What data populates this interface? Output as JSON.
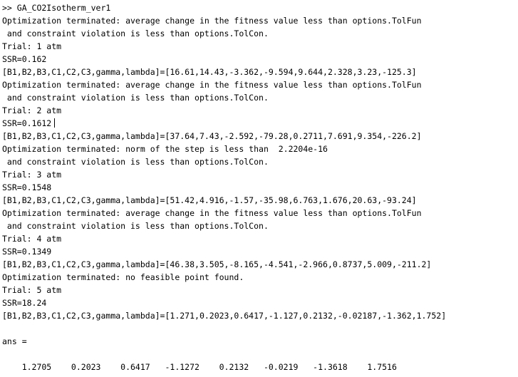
{
  "console": {
    "lines": [
      ">> GA_CO2Isotherm_ver1",
      "Optimization terminated: average change in the fitness value less than options.TolFun",
      " and constraint violation is less than options.TolCon.",
      "Trial: 1 atm",
      "SSR=0.162",
      "[B1,B2,B3,C1,C2,C3,gamma,lambda]=[16.61,14.43,-3.362,-9.594,9.644,2.328,3.23,-125.3]",
      "Optimization terminated: average change in the fitness value less than options.TolFun",
      " and constraint violation is less than options.TolCon.",
      "Trial: 2 atm",
      "SSR=0.1612",
      "[B1,B2,B3,C1,C2,C3,gamma,lambda]=[37.64,7.43,-2.592,-79.28,0.2711,7.691,9.354,-226.2]",
      "Optimization terminated: norm of the step is less than  2.2204e-16",
      " and constraint violation is less than options.TolCon.",
      "Trial: 3 atm",
      "SSR=0.1548",
      "[B1,B2,B3,C1,C2,C3,gamma,lambda]=[51.42,4.916,-1.57,-35.98,6.763,1.676,20.63,-93.24]",
      "Optimization terminated: average change in the fitness value less than options.TolFun",
      " and constraint violation is less than options.TolCon.",
      "Trial: 4 atm",
      "SSR=0.1349",
      "[B1,B2,B3,C1,C2,C3,gamma,lambda]=[46.38,3.505,-8.165,-4.541,-2.966,0.8737,5.009,-211.2]",
      "Optimization terminated: no feasible point found.",
      "Trial: 5 atm",
      "SSR=18.24",
      "[B1,B2,B3,C1,C2,C3,gamma,lambda]=[1.271,0.2023,0.6417,-1.127,0.2132,-0.02187,-1.362,1.752]",
      "",
      "ans ="
    ],
    "ans_values": "    1.2705    0.2023    0.6417   -1.1272    0.2132   -0.0219   -1.3618    1.7516"
  }
}
